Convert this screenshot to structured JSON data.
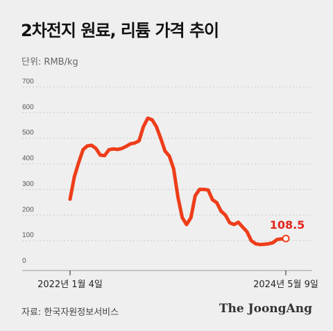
{
  "title": "2차전지 원료, 리튬 가격 추이",
  "unit_label": "단위: RMB/kg",
  "source": "자료: 한국자원정보서비스",
  "brand": "The JoongAng",
  "colors": {
    "series": "#ee3d1a",
    "end_label": "#e0281c",
    "background": "#efefef"
  },
  "chart_data": {
    "type": "line",
    "title": "2차전지 원료, 리튬 가격 추이",
    "ylabel": "단위: RMB/kg",
    "xlabel": "",
    "ylim": [
      0,
      700
    ],
    "yticks": [
      0,
      100,
      200,
      300,
      400,
      500,
      600,
      700
    ],
    "grid": true,
    "x_tick_labels": [
      "2022년 1월 4일",
      "2024년 5월 9일"
    ],
    "end_value_label": "108.5",
    "series": [
      {
        "values": [
          262,
          350,
          405,
          455,
          470,
          472,
          460,
          434,
          432,
          455,
          458,
          456,
          460,
          468,
          478,
          481,
          490,
          545,
          578,
          572,
          545,
          500,
          450,
          430,
          380,
          270,
          190,
          163,
          190,
          276,
          300,
          300,
          298,
          260,
          248,
          215,
          200,
          170,
          163,
          172,
          153,
          135,
          100,
          88,
          85,
          86,
          88,
          92,
          105,
          107,
          108.5
        ]
      }
    ]
  }
}
